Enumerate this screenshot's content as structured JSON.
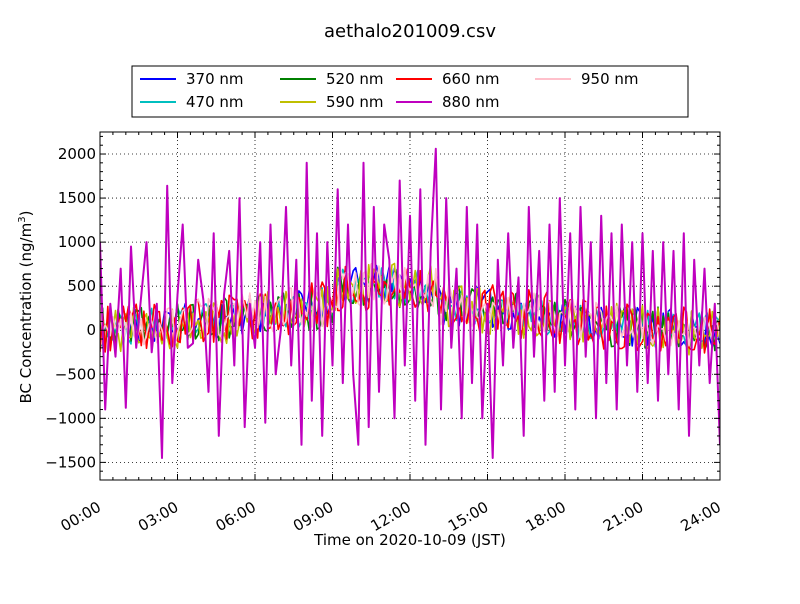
{
  "chart_data": {
    "type": "line",
    "title": "aethalo201009.csv",
    "xlabel": "Time on 2020-10-09 (JST)",
    "ylabel_main": "BC Concentration (ng/m",
    "ylabel_sup": "3",
    "ylabel_tail": ")",
    "x_unit": "hour of day",
    "xlim": [
      0,
      24
    ],
    "ylim": [
      -1700,
      2250
    ],
    "x_ticks": [
      0,
      3,
      6,
      9,
      12,
      15,
      18,
      21,
      24
    ],
    "x_tick_labels": [
      "00:00",
      "03:00",
      "06:00",
      "09:00",
      "12:00",
      "15:00",
      "18:00",
      "21:00",
      "24:00"
    ],
    "y_ticks": [
      -1500,
      -1000,
      -500,
      0,
      500,
      1000,
      1500,
      2000
    ],
    "y_tick_labels": [
      "−1500",
      "−1000",
      "−500",
      "0",
      "500",
      "1000",
      "1500",
      "2000"
    ],
    "grid": "dotted",
    "legend_placement": "top",
    "series": [
      {
        "name": "370 nm",
        "color": "#0000ff",
        "offset": 10,
        "amp": 0.32,
        "seed": 11
      },
      {
        "name": "470 nm",
        "color": "#00bfbf",
        "offset": 5,
        "amp": 0.3,
        "seed": 23
      },
      {
        "name": "520 nm",
        "color": "#008000",
        "offset": 0,
        "amp": 0.35,
        "seed": 37
      },
      {
        "name": "590 nm",
        "color": "#bfbf00",
        "offset": -10,
        "amp": 0.38,
        "seed": 41
      },
      {
        "name": "660 nm",
        "color": "#ff0000",
        "offset": 0,
        "amp": 0.4,
        "seed": 53
      },
      {
        "name": "880 nm",
        "color": "#bf00bf",
        "offset": 0,
        "amp": 1.0,
        "seed": 0
      },
      {
        "name": "950 nm",
        "color": "#ffc0cb",
        "offset": 20,
        "amp": 0.34,
        "seed": 67
      }
    ],
    "trace_880": {
      "x": [
        0.0,
        0.2,
        0.4,
        0.6,
        0.8,
        1.0,
        1.2,
        1.4,
        1.6,
        1.8,
        2.0,
        2.2,
        2.4,
        2.6,
        2.8,
        3.0,
        3.2,
        3.4,
        3.6,
        3.8,
        4.0,
        4.2,
        4.4,
        4.6,
        4.8,
        5.0,
        5.2,
        5.4,
        5.6,
        5.8,
        6.0,
        6.2,
        6.4,
        6.6,
        6.8,
        7.0,
        7.2,
        7.4,
        7.6,
        7.8,
        8.0,
        8.2,
        8.4,
        8.6,
        8.8,
        9.0,
        9.2,
        9.4,
        9.6,
        9.8,
        10.0,
        10.2,
        10.4,
        10.6,
        10.8,
        11.0,
        11.2,
        11.4,
        11.6,
        11.8,
        12.0,
        12.2,
        12.4,
        12.6,
        12.8,
        13.0,
        13.2,
        13.4,
        13.6,
        13.8,
        14.0,
        14.2,
        14.4,
        14.6,
        14.8,
        15.0,
        15.2,
        15.4,
        15.6,
        15.8,
        16.0,
        16.2,
        16.4,
        16.6,
        16.8,
        17.0,
        17.2,
        17.4,
        17.6,
        17.8,
        18.0,
        18.2,
        18.4,
        18.6,
        18.8,
        19.0,
        19.2,
        19.4,
        19.6,
        19.8,
        20.0,
        20.2,
        20.4,
        20.6,
        20.8,
        21.0,
        21.2,
        21.4,
        21.6,
        21.8,
        22.0,
        22.2,
        22.4,
        22.6,
        22.8,
        23.0,
        23.2,
        23.4,
        23.6,
        23.8,
        24.0
      ],
      "y": [
        1000,
        -900,
        300,
        -300,
        700,
        -880,
        950,
        -200,
        400,
        1000,
        -250,
        300,
        -1450,
        1640,
        -600,
        400,
        1200,
        -200,
        -150,
        800,
        350,
        -700,
        1100,
        -1200,
        400,
        900,
        -400,
        1500,
        -1100,
        300,
        -200,
        1000,
        -1050,
        1200,
        -500,
        0,
        1400,
        -400,
        800,
        -1300,
        1900,
        -800,
        1100,
        -1200,
        1000,
        -400,
        1600,
        -600,
        1200,
        -500,
        -1300,
        1900,
        -1100,
        1400,
        -700,
        1200,
        800,
        -1000,
        1700,
        -400,
        1300,
        -800,
        1600,
        -1300,
        900,
        2060,
        -900,
        1500,
        -200,
        700,
        -1000,
        1400,
        -600,
        1200,
        -1000,
        300,
        -1450,
        800,
        -400,
        1100,
        -200,
        600,
        -1200,
        1400,
        -300,
        900,
        -800,
        1200,
        -700,
        1500,
        -400,
        1100,
        -900,
        1400,
        -300,
        1000,
        -1000,
        1300,
        -600,
        1100,
        -900,
        1200,
        -400,
        1000,
        -700,
        1100,
        -600,
        900,
        -800,
        1000,
        -500,
        900,
        -900,
        1100,
        -1200,
        800,
        -400,
        700,
        -600,
        300,
        -1300
      ]
    }
  }
}
